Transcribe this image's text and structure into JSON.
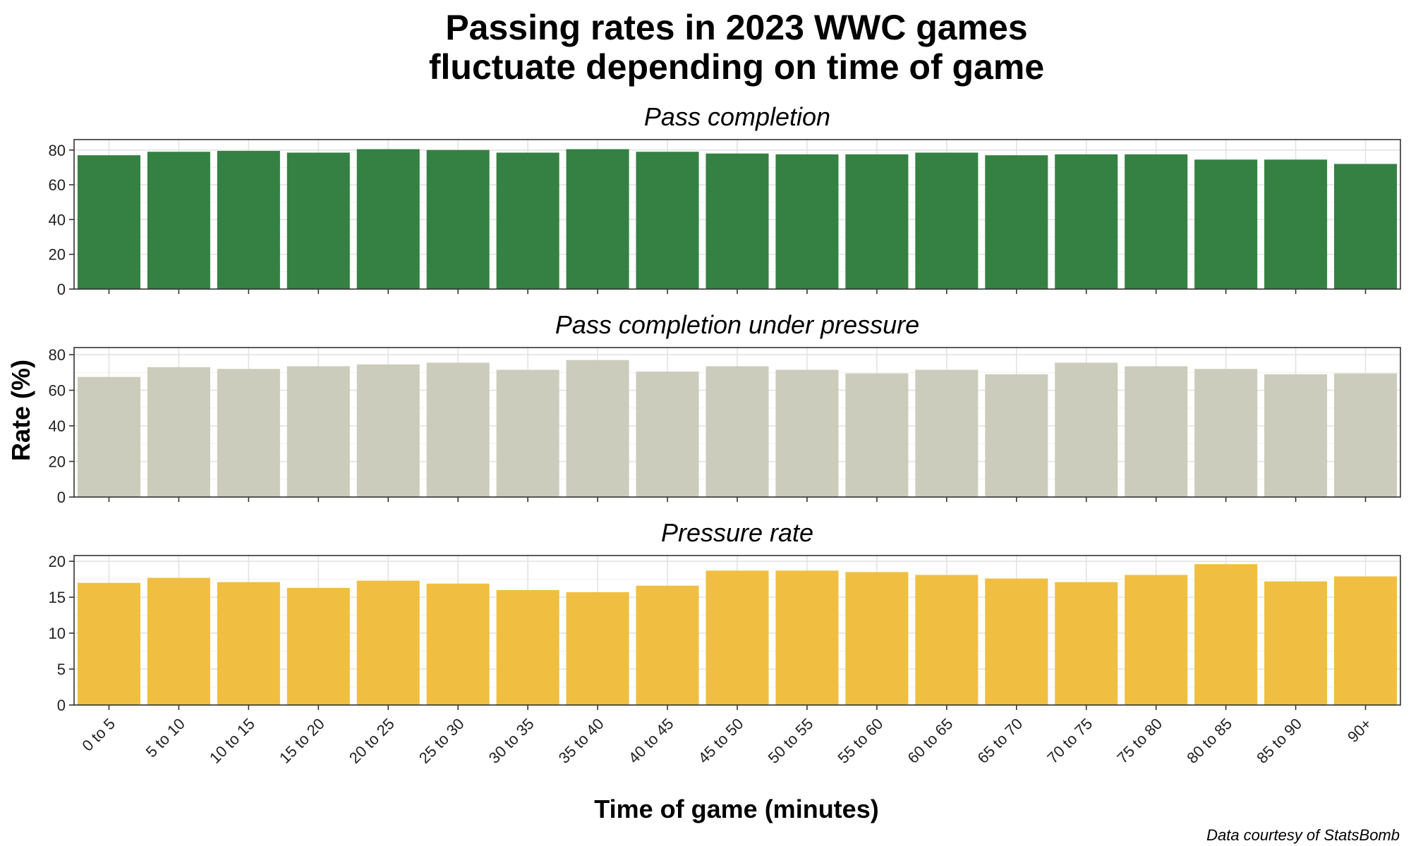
{
  "chart_data": {
    "type": "bar",
    "title_line1": "Passing rates in 2023 WWC games",
    "title_line2": "fluctuate depending on time of game",
    "xlabel": "Time of game (minutes)",
    "ylabel": "Rate (%)",
    "caption": "Data courtesy of StatsBomb",
    "categories": [
      "0 to 5",
      "5 to 10",
      "10 to 15",
      "15 to 20",
      "20 to 25",
      "25 to 30",
      "30 to 35",
      "35 to 40",
      "40 to 45",
      "45 to 50",
      "50 to 55",
      "55 to 60",
      "60 to 65",
      "65 to 70",
      "70 to 75",
      "75 to 80",
      "80 to 85",
      "85 to 90",
      "90+"
    ],
    "grid": true,
    "panels": [
      {
        "name": "Pass completion",
        "color": "#358143",
        "ylim": [
          0,
          86
        ],
        "yticks": [
          0,
          20,
          40,
          60,
          80
        ],
        "values": [
          77,
          79,
          79.5,
          78.5,
          80.5,
          80,
          78.5,
          80.5,
          79,
          78,
          77.5,
          77.5,
          78.5,
          77,
          77.5,
          77.5,
          74.5,
          74.5,
          72
        ]
      },
      {
        "name": "Pass completion under pressure",
        "color": "#cbccbb",
        "ylim": [
          0,
          84
        ],
        "yticks": [
          0,
          20,
          40,
          60,
          80
        ],
        "values": [
          67.5,
          73,
          72,
          73.5,
          74.5,
          75.5,
          71.5,
          77,
          70.5,
          73.5,
          71.5,
          69.5,
          71.5,
          69,
          75.5,
          73.5,
          72,
          69,
          69.5
        ]
      },
      {
        "name": "Pressure rate",
        "color": "#f0bf41",
        "ylim": [
          0,
          20.8
        ],
        "yticks": [
          0,
          5,
          10,
          15,
          20
        ],
        "values": [
          17,
          17.7,
          17.1,
          16.3,
          17.3,
          16.9,
          16,
          15.7,
          16.6,
          18.7,
          18.7,
          18.5,
          18.1,
          17.6,
          17.1,
          18.1,
          19.6,
          17.2,
          17.9
        ]
      }
    ]
  }
}
